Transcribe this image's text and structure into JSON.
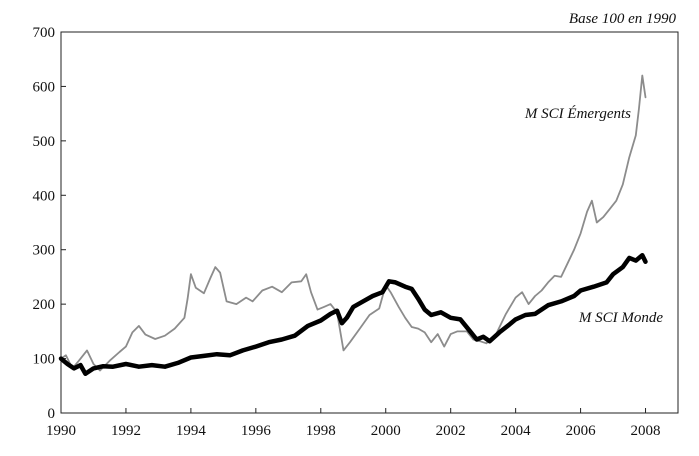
{
  "chart_data": {
    "type": "line",
    "title": "",
    "xlabel": "",
    "ylabel": "",
    "note": "Base 100 en 1990",
    "xlim": [
      1990,
      2009
    ],
    "ylim": [
      0,
      700
    ],
    "xticks": [
      1990,
      1992,
      1994,
      1996,
      1998,
      2000,
      2002,
      2004,
      2006,
      2008
    ],
    "yticks": [
      0,
      100,
      200,
      300,
      400,
      500,
      600,
      700
    ],
    "grid": false,
    "legend": "inline labels",
    "series": [
      {
        "name": "M SCI Émergents",
        "color": "#8c8c8c",
        "points": [
          [
            1990.0,
            100
          ],
          [
            1990.15,
            106
          ],
          [
            1990.35,
            82
          ],
          [
            1990.55,
            96
          ],
          [
            1990.8,
            115
          ],
          [
            1991.0,
            90
          ],
          [
            1991.2,
            78
          ],
          [
            1991.5,
            96
          ],
          [
            1991.8,
            112
          ],
          [
            1992.0,
            122
          ],
          [
            1992.2,
            148
          ],
          [
            1992.4,
            160
          ],
          [
            1992.6,
            144
          ],
          [
            1992.9,
            136
          ],
          [
            1993.2,
            142
          ],
          [
            1993.5,
            155
          ],
          [
            1993.8,
            175
          ],
          [
            1993.9,
            210
          ],
          [
            1994.0,
            255
          ],
          [
            1994.15,
            230
          ],
          [
            1994.4,
            220
          ],
          [
            1994.6,
            248
          ],
          [
            1994.75,
            268
          ],
          [
            1994.9,
            258
          ],
          [
            1995.1,
            205
          ],
          [
            1995.4,
            200
          ],
          [
            1995.7,
            212
          ],
          [
            1995.9,
            205
          ],
          [
            1996.2,
            225
          ],
          [
            1996.5,
            232
          ],
          [
            1996.8,
            222
          ],
          [
            1997.1,
            240
          ],
          [
            1997.4,
            242
          ],
          [
            1997.55,
            255
          ],
          [
            1997.7,
            222
          ],
          [
            1997.9,
            190
          ],
          [
            1998.1,
            195
          ],
          [
            1998.3,
            200
          ],
          [
            1998.5,
            185
          ],
          [
            1998.7,
            115
          ],
          [
            1998.9,
            130
          ],
          [
            1999.2,
            155
          ],
          [
            1999.5,
            180
          ],
          [
            1999.8,
            192
          ],
          [
            2000.0,
            235
          ],
          [
            2000.15,
            222
          ],
          [
            2000.4,
            195
          ],
          [
            2000.6,
            175
          ],
          [
            2000.8,
            158
          ],
          [
            2001.0,
            155
          ],
          [
            2001.2,
            148
          ],
          [
            2001.4,
            130
          ],
          [
            2001.6,
            145
          ],
          [
            2001.8,
            122
          ],
          [
            2002.0,
            145
          ],
          [
            2002.2,
            150
          ],
          [
            2002.5,
            150
          ],
          [
            2002.7,
            135
          ],
          [
            2002.9,
            132
          ],
          [
            2003.1,
            128
          ],
          [
            2003.4,
            145
          ],
          [
            2003.7,
            182
          ],
          [
            2004.0,
            212
          ],
          [
            2004.2,
            222
          ],
          [
            2004.4,
            200
          ],
          [
            2004.6,
            215
          ],
          [
            2004.8,
            225
          ],
          [
            2005.0,
            240
          ],
          [
            2005.2,
            252
          ],
          [
            2005.4,
            250
          ],
          [
            2005.6,
            275
          ],
          [
            2005.8,
            300
          ],
          [
            2006.0,
            330
          ],
          [
            2006.2,
            370
          ],
          [
            2006.35,
            390
          ],
          [
            2006.5,
            350
          ],
          [
            2006.7,
            360
          ],
          [
            2006.9,
            375
          ],
          [
            2007.1,
            390
          ],
          [
            2007.3,
            420
          ],
          [
            2007.5,
            470
          ],
          [
            2007.7,
            510
          ],
          [
            2007.8,
            560
          ],
          [
            2007.9,
            620
          ],
          [
            2008.0,
            580
          ]
        ]
      },
      {
        "name": "M SCI Monde",
        "color": "#000000",
        "points": [
          [
            1990.0,
            100
          ],
          [
            1990.2,
            90
          ],
          [
            1990.4,
            82
          ],
          [
            1990.6,
            88
          ],
          [
            1990.75,
            72
          ],
          [
            1991.0,
            82
          ],
          [
            1991.3,
            86
          ],
          [
            1991.6,
            85
          ],
          [
            1992.0,
            90
          ],
          [
            1992.4,
            85
          ],
          [
            1992.8,
            88
          ],
          [
            1993.2,
            85
          ],
          [
            1993.6,
            92
          ],
          [
            1994.0,
            102
          ],
          [
            1994.4,
            105
          ],
          [
            1994.8,
            108
          ],
          [
            1995.2,
            106
          ],
          [
            1995.6,
            115
          ],
          [
            1996.0,
            122
          ],
          [
            1996.4,
            130
          ],
          [
            1996.8,
            135
          ],
          [
            1997.2,
            142
          ],
          [
            1997.6,
            160
          ],
          [
            1998.0,
            170
          ],
          [
            1998.3,
            182
          ],
          [
            1998.5,
            188
          ],
          [
            1998.65,
            165
          ],
          [
            1998.8,
            175
          ],
          [
            1999.0,
            195
          ],
          [
            1999.3,
            205
          ],
          [
            1999.6,
            215
          ],
          [
            1999.9,
            222
          ],
          [
            2000.1,
            242
          ],
          [
            2000.3,
            240
          ],
          [
            2000.6,
            232
          ],
          [
            2000.8,
            228
          ],
          [
            2001.0,
            210
          ],
          [
            2001.2,
            190
          ],
          [
            2001.4,
            180
          ],
          [
            2001.7,
            185
          ],
          [
            2002.0,
            175
          ],
          [
            2002.3,
            172
          ],
          [
            2002.6,
            150
          ],
          [
            2002.8,
            135
          ],
          [
            2003.0,
            140
          ],
          [
            2003.2,
            132
          ],
          [
            2003.5,
            148
          ],
          [
            2003.8,
            162
          ],
          [
            2004.0,
            172
          ],
          [
            2004.3,
            180
          ],
          [
            2004.6,
            182
          ],
          [
            2005.0,
            198
          ],
          [
            2005.4,
            205
          ],
          [
            2005.8,
            215
          ],
          [
            2006.0,
            225
          ],
          [
            2006.4,
            232
          ],
          [
            2006.8,
            240
          ],
          [
            2007.0,
            255
          ],
          [
            2007.3,
            268
          ],
          [
            2007.5,
            285
          ],
          [
            2007.7,
            280
          ],
          [
            2007.9,
            290
          ],
          [
            2008.0,
            278
          ]
        ]
      }
    ]
  }
}
